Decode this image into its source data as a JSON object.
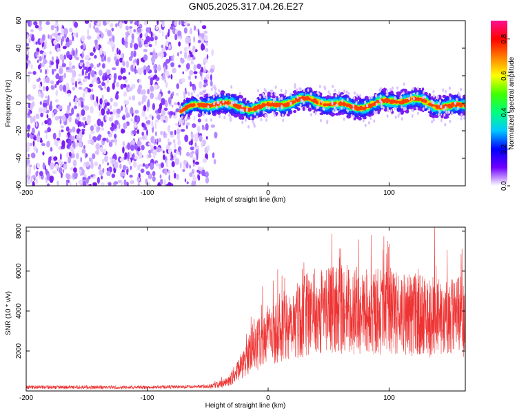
{
  "title": "GN05.2025.317.04.26.E27",
  "chart_data": [
    {
      "type": "heatmap",
      "name": "spectrogram",
      "xlabel": "Height of straight line (km)",
      "ylabel": "Frequency (Hz)",
      "xlim": [
        -200,
        163
      ],
      "ylim": [
        -60,
        60
      ],
      "x_ticks": [
        -200,
        -100,
        0,
        100
      ],
      "y_ticks": [
        -60,
        -40,
        -20,
        0,
        20,
        40,
        60
      ],
      "noise_region_x": [
        -200,
        -50
      ],
      "signal_start_x": -72,
      "signal_band_center_hz": 0,
      "signal_band_halfwidth_hz": 8,
      "colorbar": {
        "label": "Normalized spectral amplitude",
        "range": [
          0.0,
          0.9
        ],
        "ticks": [
          "0.0",
          "0.2",
          "0.4",
          "0.6",
          "0.8"
        ],
        "colormap": [
          "#ffffff",
          "#7000ff",
          "#0000ff",
          "#00c8ff",
          "#00ff80",
          "#40ff00",
          "#ffff00",
          "#ff8000",
          "#ff0000",
          "#ff1090"
        ]
      }
    },
    {
      "type": "line",
      "name": "snr",
      "xlabel": "Height of straight line (km)",
      "ylabel": "SNR (10 * v/v)",
      "xlim": [
        -200,
        163
      ],
      "ylim": [
        0,
        8200
      ],
      "x_ticks": [
        -200,
        -100,
        0,
        100
      ],
      "y_ticks": [
        2000,
        4000,
        6000,
        8000
      ],
      "color": "#ee3333",
      "trend": {
        "x": [
          -200,
          -100,
          -50,
          -35,
          -25,
          -15,
          0,
          20,
          40,
          60,
          80,
          100,
          120,
          140,
          163
        ],
        "y": [
          150,
          150,
          200,
          400,
          1000,
          1900,
          2800,
          3500,
          4000,
          4100,
          4000,
          3900,
          3800,
          3700,
          3700
        ]
      }
    }
  ]
}
